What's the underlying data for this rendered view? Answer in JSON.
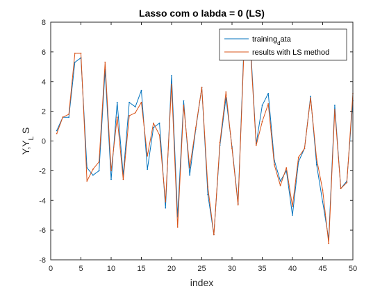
{
  "chart_data": {
    "type": "line",
    "title": "Lasso com o labda = 0 (LS)",
    "xlabel": "index",
    "ylabel": "Y,Y_L S",
    "xlim": [
      0,
      50
    ],
    "ylim": [
      -8,
      8
    ],
    "xticks": [
      "0",
      "5",
      "10",
      "15",
      "20",
      "25",
      "30",
      "35",
      "40",
      "45",
      "50"
    ],
    "yticks": [
      "-8",
      "-6",
      "-4",
      "-2",
      "0",
      "2",
      "4",
      "6",
      "8"
    ],
    "grid": false,
    "legend_position": "top-right",
    "x": [
      1,
      2,
      3,
      4,
      5,
      6,
      7,
      8,
      9,
      10,
      11,
      12,
      13,
      14,
      15,
      16,
      17,
      18,
      19,
      20,
      21,
      22,
      23,
      24,
      25,
      26,
      27,
      28,
      29,
      30,
      31,
      32,
      33,
      34,
      35,
      36,
      37,
      38,
      39,
      40,
      41,
      42,
      43,
      44,
      45,
      46,
      47,
      48,
      49,
      50
    ],
    "series": [
      {
        "name": "training_data",
        "legend_main": "training",
        "legend_sub": "d",
        "legend_tail": "ata",
        "color": "#0072BD",
        "values": [
          0.7,
          1.6,
          1.6,
          5.3,
          5.6,
          -1.8,
          -2.3,
          -2.0,
          4.8,
          -2.6,
          2.6,
          -2.3,
          2.6,
          2.3,
          3.4,
          -1.9,
          0.9,
          1.2,
          -4.5,
          4.4,
          -5.1,
          2.7,
          -2.3,
          0.8,
          3.6,
          -3.6,
          -6.3,
          -0.3,
          2.9,
          -0.4,
          -4.2,
          6.7,
          6.9,
          -0.2,
          2.4,
          3.2,
          -1.3,
          -2.7,
          -2.0,
          -5.0,
          -1.4,
          -0.5,
          3.0,
          -1.6,
          -4.1,
          -6.6,
          2.4,
          -3.2,
          -2.7,
          2.7
        ]
      },
      {
        "name": "results with LS method",
        "legend_main": "results with LS method",
        "legend_sub": "",
        "legend_tail": "",
        "color": "#D95319",
        "values": [
          0.5,
          1.6,
          1.8,
          5.9,
          5.9,
          -2.7,
          -1.9,
          -1.4,
          5.3,
          -2.0,
          1.6,
          -2.6,
          1.7,
          1.9,
          2.6,
          -1.0,
          1.2,
          0.4,
          -4.1,
          3.8,
          -5.8,
          2.4,
          -1.8,
          0.9,
          3.6,
          -3.1,
          -6.3,
          -0.1,
          3.3,
          -0.5,
          -4.3,
          6.3,
          6.5,
          -0.3,
          1.3,
          2.5,
          -1.6,
          -3.0,
          -1.8,
          -4.4,
          -1.1,
          -0.5,
          2.9,
          -1.2,
          -3.3,
          -6.9,
          2.1,
          -3.2,
          -2.8,
          3.2
        ]
      }
    ]
  }
}
